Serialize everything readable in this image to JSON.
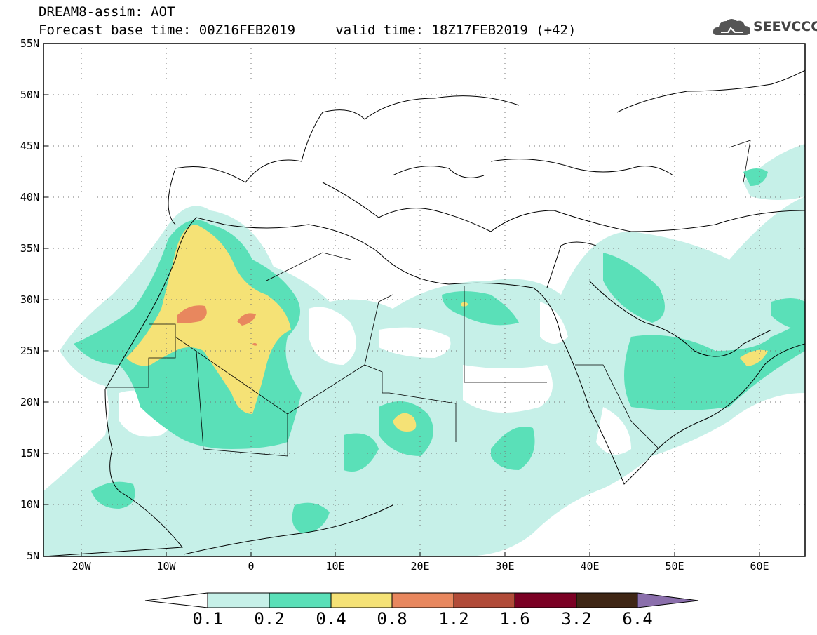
{
  "header": {
    "title_line1": "DREAM8-assim: AOT",
    "title_line2": "Forecast base time: 00Z16FEB2019     valid time: 18Z17FEB2019 (+42)",
    "logo_text": "SEEVCCC",
    "logo_icon": "cloud-icon"
  },
  "map": {
    "lon_labels": [
      "20W",
      "10W",
      "0",
      "10E",
      "20E",
      "30E",
      "40E",
      "50E",
      "60E"
    ],
    "lat_labels": [
      "55N",
      "50N",
      "45N",
      "40N",
      "35N",
      "30N",
      "25N",
      "20N",
      "15N",
      "10N",
      "5N"
    ],
    "lon_range": [
      -25,
      65
    ],
    "lat_range": [
      5,
      55
    ]
  },
  "colorbar": {
    "labels": [
      "0.1",
      "0.2",
      "0.4",
      "0.8",
      "1.2",
      "1.6",
      "3.2",
      "6.4"
    ],
    "colors": [
      "#ffffff",
      "#c6f0e8",
      "#5ae0b8",
      "#f5e276",
      "#e8875e",
      "#b14b38",
      "#7b0024",
      "#3f2615",
      "#8b6fac"
    ]
  }
}
